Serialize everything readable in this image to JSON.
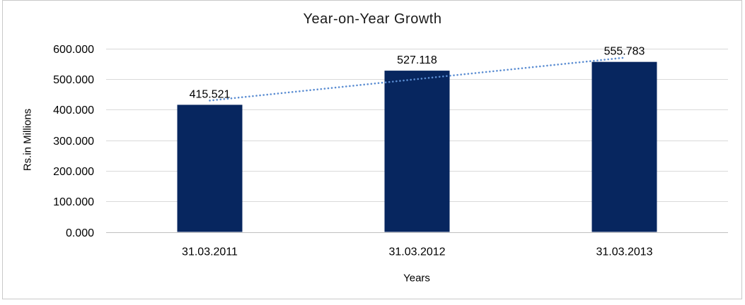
{
  "window": {
    "background": "#ffffff",
    "frame_border_color": "#c9c9c9"
  },
  "chart_data": {
    "type": "bar",
    "title": "Year-on-Year Growth",
    "categories": [
      "31.03.2011",
      "31.03.2012",
      "31.03.2013"
    ],
    "values": [
      415.521,
      527.118,
      555.783
    ],
    "value_labels": [
      "415.521",
      "527.118",
      "555.783"
    ],
    "xlabel": "Years",
    "ylabel": "Rs.in Millions",
    "ylim": [
      0,
      600
    ],
    "ytick_step": 100,
    "ytick_labels": [
      "0.000",
      "100.000",
      "200.000",
      "300.000",
      "400.000",
      "500.000",
      "600.000"
    ],
    "grid": true,
    "legend_position": "none",
    "bar_color": "#07265f",
    "trendline": {
      "type": "linear",
      "style": "dotted",
      "color": "#5b8dd2"
    },
    "gridline_color": "#d9d9d9",
    "axis_line_color": "#c0c0c0",
    "text_color": "#000000",
    "title_color": "#1a1a1a"
  }
}
